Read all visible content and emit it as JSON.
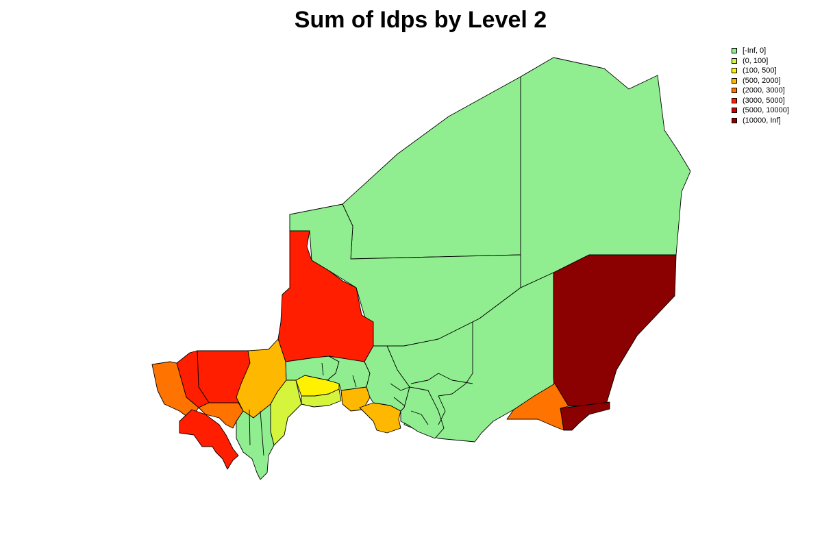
{
  "title": "Sum of Idps by Level 2",
  "legend": {
    "position": "top-right",
    "items": [
      {
        "label": "[-Inf, 0]",
        "color": "#90EE90"
      },
      {
        "label": "(0, 100]",
        "color": "#D4F53C"
      },
      {
        "label": "(100, 500]",
        "color": "#FFF200"
      },
      {
        "label": "(500, 2000]",
        "color": "#FFB800"
      },
      {
        "label": "(2000, 3000]",
        "color": "#FF7300"
      },
      {
        "label": "(3000, 5000]",
        "color": "#FF1E00"
      },
      {
        "label": "(5000, 10000]",
        "color": "#C80000"
      },
      {
        "label": "(10000, Inf]",
        "color": "#8B0000"
      }
    ]
  },
  "regions": [
    {
      "name": "northwest",
      "bin": 0
    },
    {
      "name": "northeast",
      "bin": 0
    },
    {
      "name": "central",
      "bin": 0
    },
    {
      "name": "central-east",
      "bin": 0
    },
    {
      "name": "far-east",
      "bin": 7
    },
    {
      "name": "southeast-corner",
      "bin": 7
    },
    {
      "name": "southeast-border",
      "bin": 4
    },
    {
      "name": "west-strip",
      "bin": 5
    },
    {
      "name": "west-a",
      "bin": 5
    },
    {
      "name": "west-b",
      "bin": 5
    },
    {
      "name": "west-c",
      "bin": 3
    },
    {
      "name": "far-west",
      "bin": 4
    },
    {
      "name": "southwest",
      "bin": 5
    },
    {
      "name": "southwest-center",
      "bin": 4
    },
    {
      "name": "south-yellowgreen",
      "bin": 1
    },
    {
      "name": "south-strip",
      "bin": 0
    },
    {
      "name": "south-yellow",
      "bin": 2
    },
    {
      "name": "south-yellowgreen-2",
      "bin": 1
    },
    {
      "name": "south-green-a",
      "bin": 0
    },
    {
      "name": "south-green-b",
      "bin": 0
    },
    {
      "name": "south-orange-a",
      "bin": 3
    },
    {
      "name": "south-orange-b",
      "bin": 3
    },
    {
      "name": "south-central-green",
      "bin": 0
    },
    {
      "name": "south-central-green-2",
      "bin": 0
    }
  ]
}
